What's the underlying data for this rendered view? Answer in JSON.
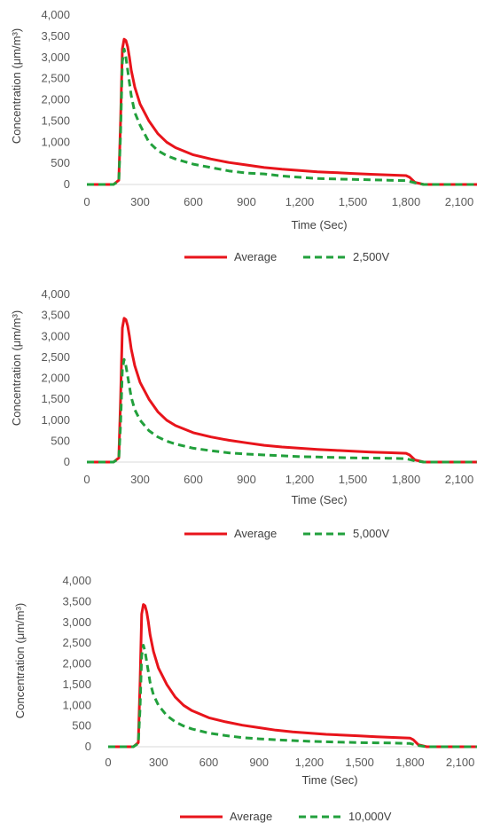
{
  "chart_data": [
    {
      "type": "line",
      "xlabel": "Time (Sec)",
      "ylabel": "Concentration (μm/m³)",
      "xlim": [
        0,
        2200
      ],
      "ylim": [
        0,
        4000
      ],
      "xticks": [
        "0",
        "300",
        "600",
        "900",
        "1,200",
        "1,500",
        "1,800",
        "2,100"
      ],
      "yticks": [
        "0",
        "500",
        "1,000",
        "1,500",
        "2,000",
        "2,500",
        "3,000",
        "3,500",
        "4,000"
      ],
      "legend_position": "bottom",
      "series": [
        {
          "name": "Average",
          "color": "#e8141b",
          "style": "solid",
          "x": [
            0,
            150,
            180,
            190,
            200,
            210,
            220,
            230,
            240,
            250,
            270,
            300,
            350,
            400,
            450,
            500,
            600,
            700,
            800,
            900,
            1000,
            1100,
            1200,
            1300,
            1400,
            1500,
            1600,
            1700,
            1800,
            1820,
            1850,
            1900,
            2000,
            2200
          ],
          "y": [
            0,
            0,
            100,
            1500,
            3200,
            3430,
            3400,
            3250,
            3000,
            2700,
            2300,
            1900,
            1500,
            1200,
            1000,
            870,
            700,
            600,
            520,
            460,
            400,
            360,
            330,
            300,
            280,
            260,
            240,
            225,
            210,
            170,
            50,
            0,
            0,
            0
          ]
        },
        {
          "name": "2,500V",
          "color": "#22a03c",
          "style": "dashed",
          "x": [
            0,
            150,
            180,
            190,
            200,
            210,
            220,
            230,
            240,
            250,
            270,
            300,
            350,
            400,
            450,
            500,
            600,
            700,
            800,
            900,
            1000,
            1100,
            1200,
            1300,
            1400,
            1500,
            1600,
            1700,
            1800,
            1850,
            1900,
            2200
          ],
          "y": [
            0,
            0,
            80,
            1200,
            2900,
            3200,
            3000,
            2700,
            2400,
            2100,
            1700,
            1400,
            1000,
            800,
            680,
            600,
            480,
            400,
            320,
            270,
            250,
            200,
            170,
            140,
            130,
            120,
            110,
            100,
            90,
            40,
            0,
            0
          ]
        }
      ]
    },
    {
      "type": "line",
      "xlabel": "Time (Sec)",
      "ylabel": "Concentration (μm/m³)",
      "xlim": [
        0,
        2200
      ],
      "ylim": [
        0,
        4000
      ],
      "xticks": [
        "0",
        "300",
        "600",
        "900",
        "1,200",
        "1,500",
        "1,800",
        "2,100"
      ],
      "yticks": [
        "0",
        "500",
        "1,000",
        "1,500",
        "2,000",
        "2,500",
        "3,000",
        "3,500",
        "4,000"
      ],
      "legend_position": "bottom",
      "series": [
        {
          "name": "Average",
          "color": "#e8141b",
          "style": "solid",
          "x": [
            0,
            150,
            180,
            190,
            200,
            210,
            220,
            230,
            240,
            250,
            270,
            300,
            350,
            400,
            450,
            500,
            600,
            700,
            800,
            900,
            1000,
            1100,
            1200,
            1300,
            1400,
            1500,
            1600,
            1700,
            1800,
            1820,
            1850,
            1900,
            2000,
            2200
          ],
          "y": [
            0,
            0,
            100,
            1500,
            3200,
            3430,
            3400,
            3250,
            3000,
            2700,
            2300,
            1900,
            1500,
            1200,
            1000,
            870,
            700,
            600,
            520,
            460,
            400,
            360,
            330,
            300,
            280,
            260,
            240,
            225,
            210,
            170,
            50,
            0,
            0,
            0
          ]
        },
        {
          "name": "5,000V",
          "color": "#22a03c",
          "style": "dashed",
          "x": [
            0,
            150,
            180,
            190,
            200,
            210,
            220,
            230,
            240,
            250,
            270,
            300,
            350,
            400,
            450,
            500,
            600,
            700,
            800,
            900,
            1000,
            1100,
            1200,
            1300,
            1400,
            1500,
            1600,
            1700,
            1800,
            1850,
            1900,
            2200
          ],
          "y": [
            0,
            0,
            80,
            900,
            2200,
            2450,
            2300,
            2050,
            1800,
            1550,
            1250,
            1000,
            750,
            600,
            500,
            430,
            330,
            270,
            220,
            190,
            170,
            150,
            130,
            120,
            110,
            100,
            95,
            90,
            80,
            30,
            0,
            0
          ]
        }
      ]
    },
    {
      "type": "line",
      "xlabel": "Time (Sec)",
      "ylabel": "Concentration (μm/m³)",
      "xlim": [
        0,
        2200
      ],
      "ylim": [
        0,
        4000
      ],
      "xticks": [
        "0",
        "300",
        "600",
        "900",
        "1,200",
        "1,500",
        "1,800",
        "2,100"
      ],
      "yticks": [
        "0",
        "500",
        "1,000",
        "1,500",
        "2,000",
        "2,500",
        "3,000",
        "3,500",
        "4,000"
      ],
      "legend_position": "bottom",
      "series": [
        {
          "name": "Average",
          "color": "#e8141b",
          "style": "solid",
          "x": [
            0,
            150,
            180,
            190,
            200,
            210,
            220,
            230,
            240,
            250,
            270,
            300,
            350,
            400,
            450,
            500,
            600,
            700,
            800,
            900,
            1000,
            1100,
            1200,
            1300,
            1400,
            1500,
            1600,
            1700,
            1800,
            1820,
            1850,
            1900,
            2000,
            2200
          ],
          "y": [
            0,
            0,
            100,
            1500,
            3200,
            3430,
            3400,
            3250,
            3000,
            2700,
            2300,
            1900,
            1500,
            1200,
            1000,
            870,
            700,
            600,
            520,
            460,
            400,
            360,
            330,
            300,
            280,
            260,
            240,
            225,
            210,
            170,
            50,
            0,
            0,
            0
          ]
        },
        {
          "name": "10,000V",
          "color": "#22a03c",
          "style": "dashed",
          "x": [
            0,
            150,
            180,
            190,
            200,
            210,
            220,
            230,
            240,
            250,
            270,
            300,
            350,
            400,
            450,
            500,
            600,
            700,
            800,
            900,
            1000,
            1100,
            1200,
            1300,
            1400,
            1500,
            1600,
            1700,
            1800,
            1850,
            1900,
            2200
          ],
          "y": [
            0,
            0,
            80,
            900,
            2200,
            2450,
            2300,
            2050,
            1800,
            1550,
            1250,
            1000,
            750,
            600,
            500,
            430,
            330,
            270,
            220,
            190,
            170,
            150,
            130,
            120,
            110,
            100,
            95,
            90,
            80,
            30,
            0,
            0
          ]
        }
      ]
    }
  ]
}
